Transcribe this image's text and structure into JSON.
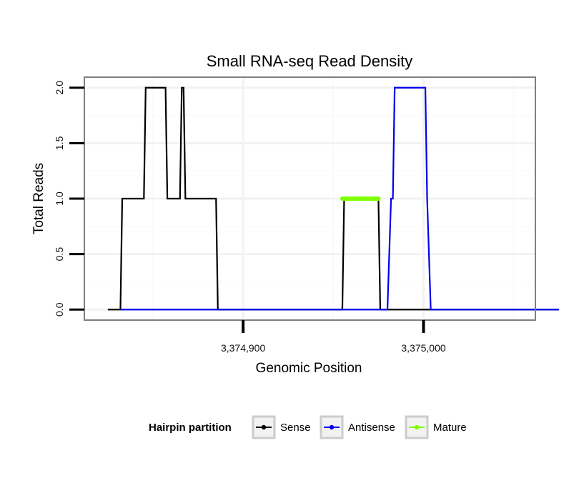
{
  "chart_data": {
    "type": "line",
    "title": "Small RNA-seq Read Density",
    "xlabel": "Genomic Position",
    "ylabel": "Total Reads",
    "xlim": [
      3374812,
      3375062
    ],
    "ylim": [
      -0.095,
      2.095
    ],
    "x_ticks": [
      3374900,
      3375000
    ],
    "x_tick_labels": [
      "3,374,900",
      "3,375,000"
    ],
    "y_ticks": [
      0,
      0.5,
      1,
      1.5,
      2
    ],
    "y_tick_labels": [
      "0.0",
      "0.5",
      "1.0",
      "1.5",
      "2.0"
    ],
    "grid": true,
    "legend": {
      "title": "Hairpin partition",
      "position": "bottom",
      "entries": [
        {
          "label": "Sense",
          "color": "#000000"
        },
        {
          "label": "Antisense",
          "color": "#0000ee"
        },
        {
          "label": "Mature",
          "color": "#7fff00"
        }
      ]
    },
    "series": [
      {
        "name": "Sense",
        "color": "#000000",
        "x": [
          3374825,
          3374832,
          3374833,
          3374845,
          3374846,
          3374857,
          3374858,
          3374865,
          3374866,
          3374867,
          3374868,
          3374885,
          3374886,
          3374955,
          3374956,
          3374975,
          3374976,
          3375075
        ],
        "y": [
          0,
          0,
          1,
          1,
          2,
          2,
          1,
          1,
          2,
          2,
          1,
          1,
          0,
          0,
          1,
          1,
          0,
          0
        ]
      },
      {
        "name": "Antisense",
        "color": "#0000ee",
        "x": [
          3374832,
          3374980,
          3374982,
          3374983,
          3374984,
          3375001,
          3375002,
          3375004,
          3375075
        ],
        "y": [
          0,
          0,
          1,
          1,
          2,
          2,
          1,
          0,
          0
        ]
      },
      {
        "name": "Mature",
        "color": "#7fff00",
        "x": [
          3374955,
          3374975
        ],
        "y": [
          1,
          1
        ]
      }
    ]
  }
}
